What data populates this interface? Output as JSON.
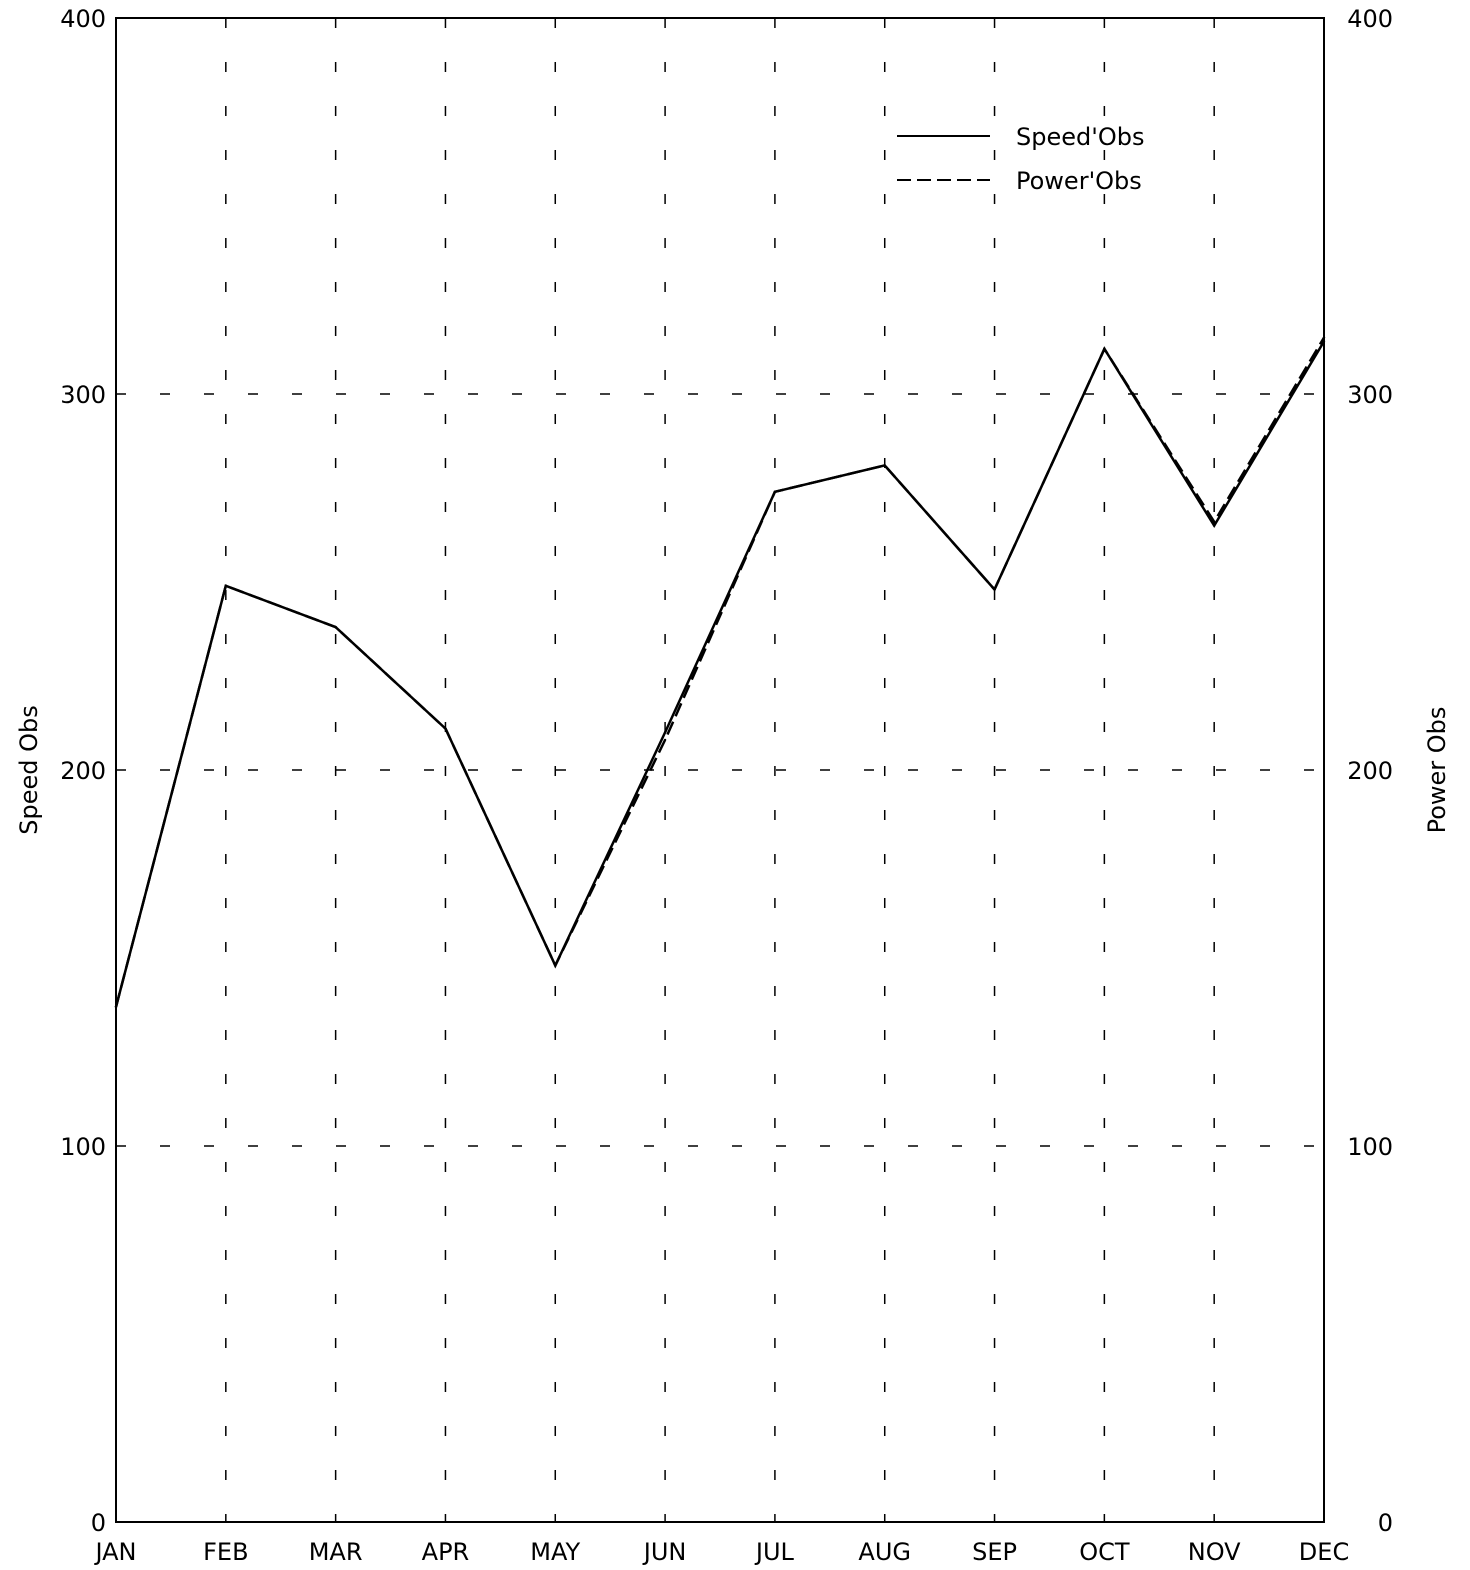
{
  "chart_data": {
    "type": "line",
    "categories": [
      "JAN",
      "FEB",
      "MAR",
      "APR",
      "MAY",
      "JUN",
      "JUL",
      "AUG",
      "SEP",
      "OCT",
      "NOV",
      "DEC"
    ],
    "series": [
      {
        "name": "Speed'Obs",
        "style": "solid",
        "values": [
          137,
          249,
          238,
          211,
          148,
          210,
          274,
          281,
          248,
          312,
          265,
          314
        ]
      },
      {
        "name": "Power'Obs",
        "style": "dashed",
        "values": [
          137,
          249,
          238,
          211,
          148,
          208,
          274,
          281,
          248,
          312,
          266,
          315
        ]
      }
    ],
    "y_ticks": [
      "0",
      "100",
      "200",
      "300",
      "400"
    ],
    "ylim": [
      0,
      400
    ],
    "ylabel": "Speed Obs",
    "ylabel_right": "Power Obs",
    "y2lim": [
      0,
      400
    ],
    "grid": true,
    "legend_position": "top-right",
    "colors": {
      "line": "#000000",
      "grid": "#000000",
      "background": "#ffffff"
    }
  }
}
